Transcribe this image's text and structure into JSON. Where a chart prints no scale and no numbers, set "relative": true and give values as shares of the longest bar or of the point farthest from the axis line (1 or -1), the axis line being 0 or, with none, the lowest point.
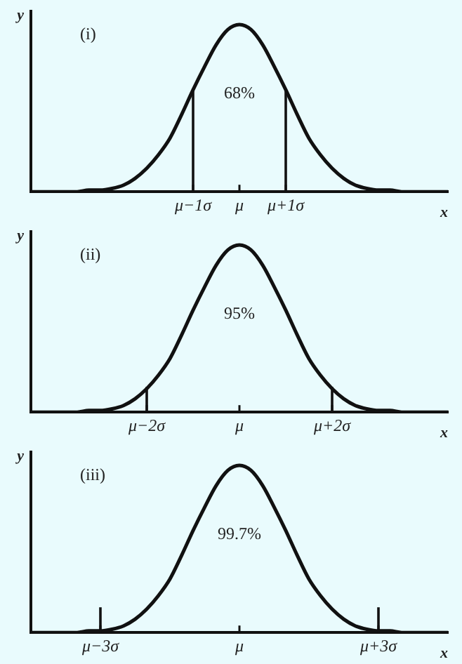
{
  "chart_data": [
    {
      "type": "line",
      "annotations": [
        "(i)",
        "68%"
      ],
      "xlabel": "x",
      "ylabel": "y",
      "relative": true,
      "tick_labels": "x",
      "grid": false,
      "legend": false,
      "categories": [
        null,
        null,
        null,
        null,
        null,
        null,
        null,
        null,
        null,
        null,
        null,
        null,
        null,
        null,
        "μ−1σ",
        null,
        null,
        null,
        "μ",
        null,
        null,
        null,
        "μ+1σ",
        null,
        null,
        null,
        null,
        null,
        null,
        null,
        null,
        null,
        null,
        null,
        null,
        null,
        null
      ],
      "series": [
        {
          "color": "#111111",
          "values": [
            0,
            0,
            0,
            0,
            0,
            0.01,
            0.01,
            0.02,
            0.04,
            0.08,
            0.14,
            0.22,
            0.32,
            0.46,
            0.61,
            0.75,
            0.88,
            0.97,
            1,
            0.97,
            0.88,
            0.75,
            0.61,
            0.46,
            0.32,
            0.22,
            0.14,
            0.08,
            0.04,
            0.02,
            0.01,
            0.01,
            0,
            0,
            0,
            0,
            0
          ]
        }
      ],
      "ref_lines": [
        {
          "axis": "x",
          "value": "μ−1σ"
        },
        {
          "axis": "x",
          "value": "μ+1σ"
        }
      ]
    },
    {
      "type": "line",
      "annotations": [
        "(ii)",
        "95%"
      ],
      "xlabel": "x",
      "ylabel": "y",
      "relative": true,
      "tick_labels": "x",
      "grid": false,
      "legend": false,
      "categories": [
        null,
        null,
        null,
        null,
        null,
        null,
        null,
        null,
        null,
        null,
        "μ−2σ",
        null,
        null,
        null,
        null,
        null,
        null,
        null,
        "μ",
        null,
        null,
        null,
        null,
        null,
        null,
        null,
        "μ+2σ",
        null,
        null,
        null,
        null,
        null,
        null,
        null,
        null,
        null,
        null
      ],
      "series": [
        {
          "color": "#111111",
          "values": [
            0,
            0,
            0,
            0,
            0,
            0.01,
            0.01,
            0.02,
            0.04,
            0.08,
            0.14,
            0.22,
            0.32,
            0.46,
            0.61,
            0.75,
            0.88,
            0.97,
            1,
            0.97,
            0.88,
            0.75,
            0.61,
            0.46,
            0.32,
            0.22,
            0.14,
            0.08,
            0.04,
            0.02,
            0.01,
            0.01,
            0,
            0,
            0,
            0,
            0
          ]
        }
      ],
      "ref_lines": [
        {
          "axis": "x",
          "value": "μ−2σ"
        },
        {
          "axis": "x",
          "value": "μ+2σ"
        }
      ]
    },
    {
      "type": "line",
      "annotations": [
        "(iii)",
        "99.7%"
      ],
      "xlabel": "x",
      "ylabel": "y",
      "relative": true,
      "tick_labels": "x",
      "grid": false,
      "legend": false,
      "categories": [
        null,
        null,
        null,
        null,
        null,
        null,
        "μ−3σ",
        null,
        null,
        null,
        null,
        null,
        null,
        null,
        null,
        null,
        null,
        null,
        "μ",
        null,
        null,
        null,
        null,
        null,
        null,
        null,
        null,
        null,
        null,
        null,
        "μ+3σ",
        null,
        null,
        null,
        null,
        null,
        null
      ],
      "series": [
        {
          "color": "#111111",
          "values": [
            0,
            0,
            0,
            0,
            0,
            0.01,
            0.01,
            0.02,
            0.04,
            0.08,
            0.14,
            0.22,
            0.32,
            0.46,
            0.61,
            0.75,
            0.88,
            0.97,
            1,
            0.97,
            0.88,
            0.75,
            0.61,
            0.46,
            0.32,
            0.22,
            0.14,
            0.08,
            0.04,
            0.02,
            0.01,
            0.01,
            0,
            0,
            0,
            0,
            0
          ]
        }
      ],
      "ref_lines": [
        {
          "axis": "x",
          "value": "μ−3σ"
        },
        {
          "axis": "x",
          "value": "μ+3σ"
        }
      ]
    }
  ]
}
